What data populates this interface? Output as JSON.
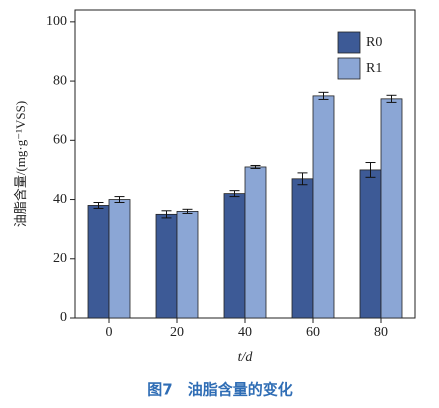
{
  "chart_data": {
    "type": "bar",
    "categories": [
      "0",
      "20",
      "40",
      "60",
      "80"
    ],
    "series": [
      {
        "name": "R0",
        "color": "#3d5a96",
        "values": [
          38,
          35,
          42,
          47,
          50
        ],
        "errors": [
          1,
          1.2,
          1,
          2,
          2.5
        ]
      },
      {
        "name": "R1",
        "color": "#8ba6d5",
        "values": [
          40,
          36,
          51,
          75,
          74
        ],
        "errors": [
          1,
          0.7,
          0.5,
          1.2,
          1.2
        ]
      }
    ],
    "ylabel": "油脂含量/(mg·g⁻¹VSS)",
    "xlabel": "t/d",
    "caption": "图7　油脂含量的变化",
    "ylim": [
      0,
      104
    ],
    "yticks": [
      0,
      20,
      40,
      60,
      80,
      100
    ],
    "legend": "upper-right"
  }
}
